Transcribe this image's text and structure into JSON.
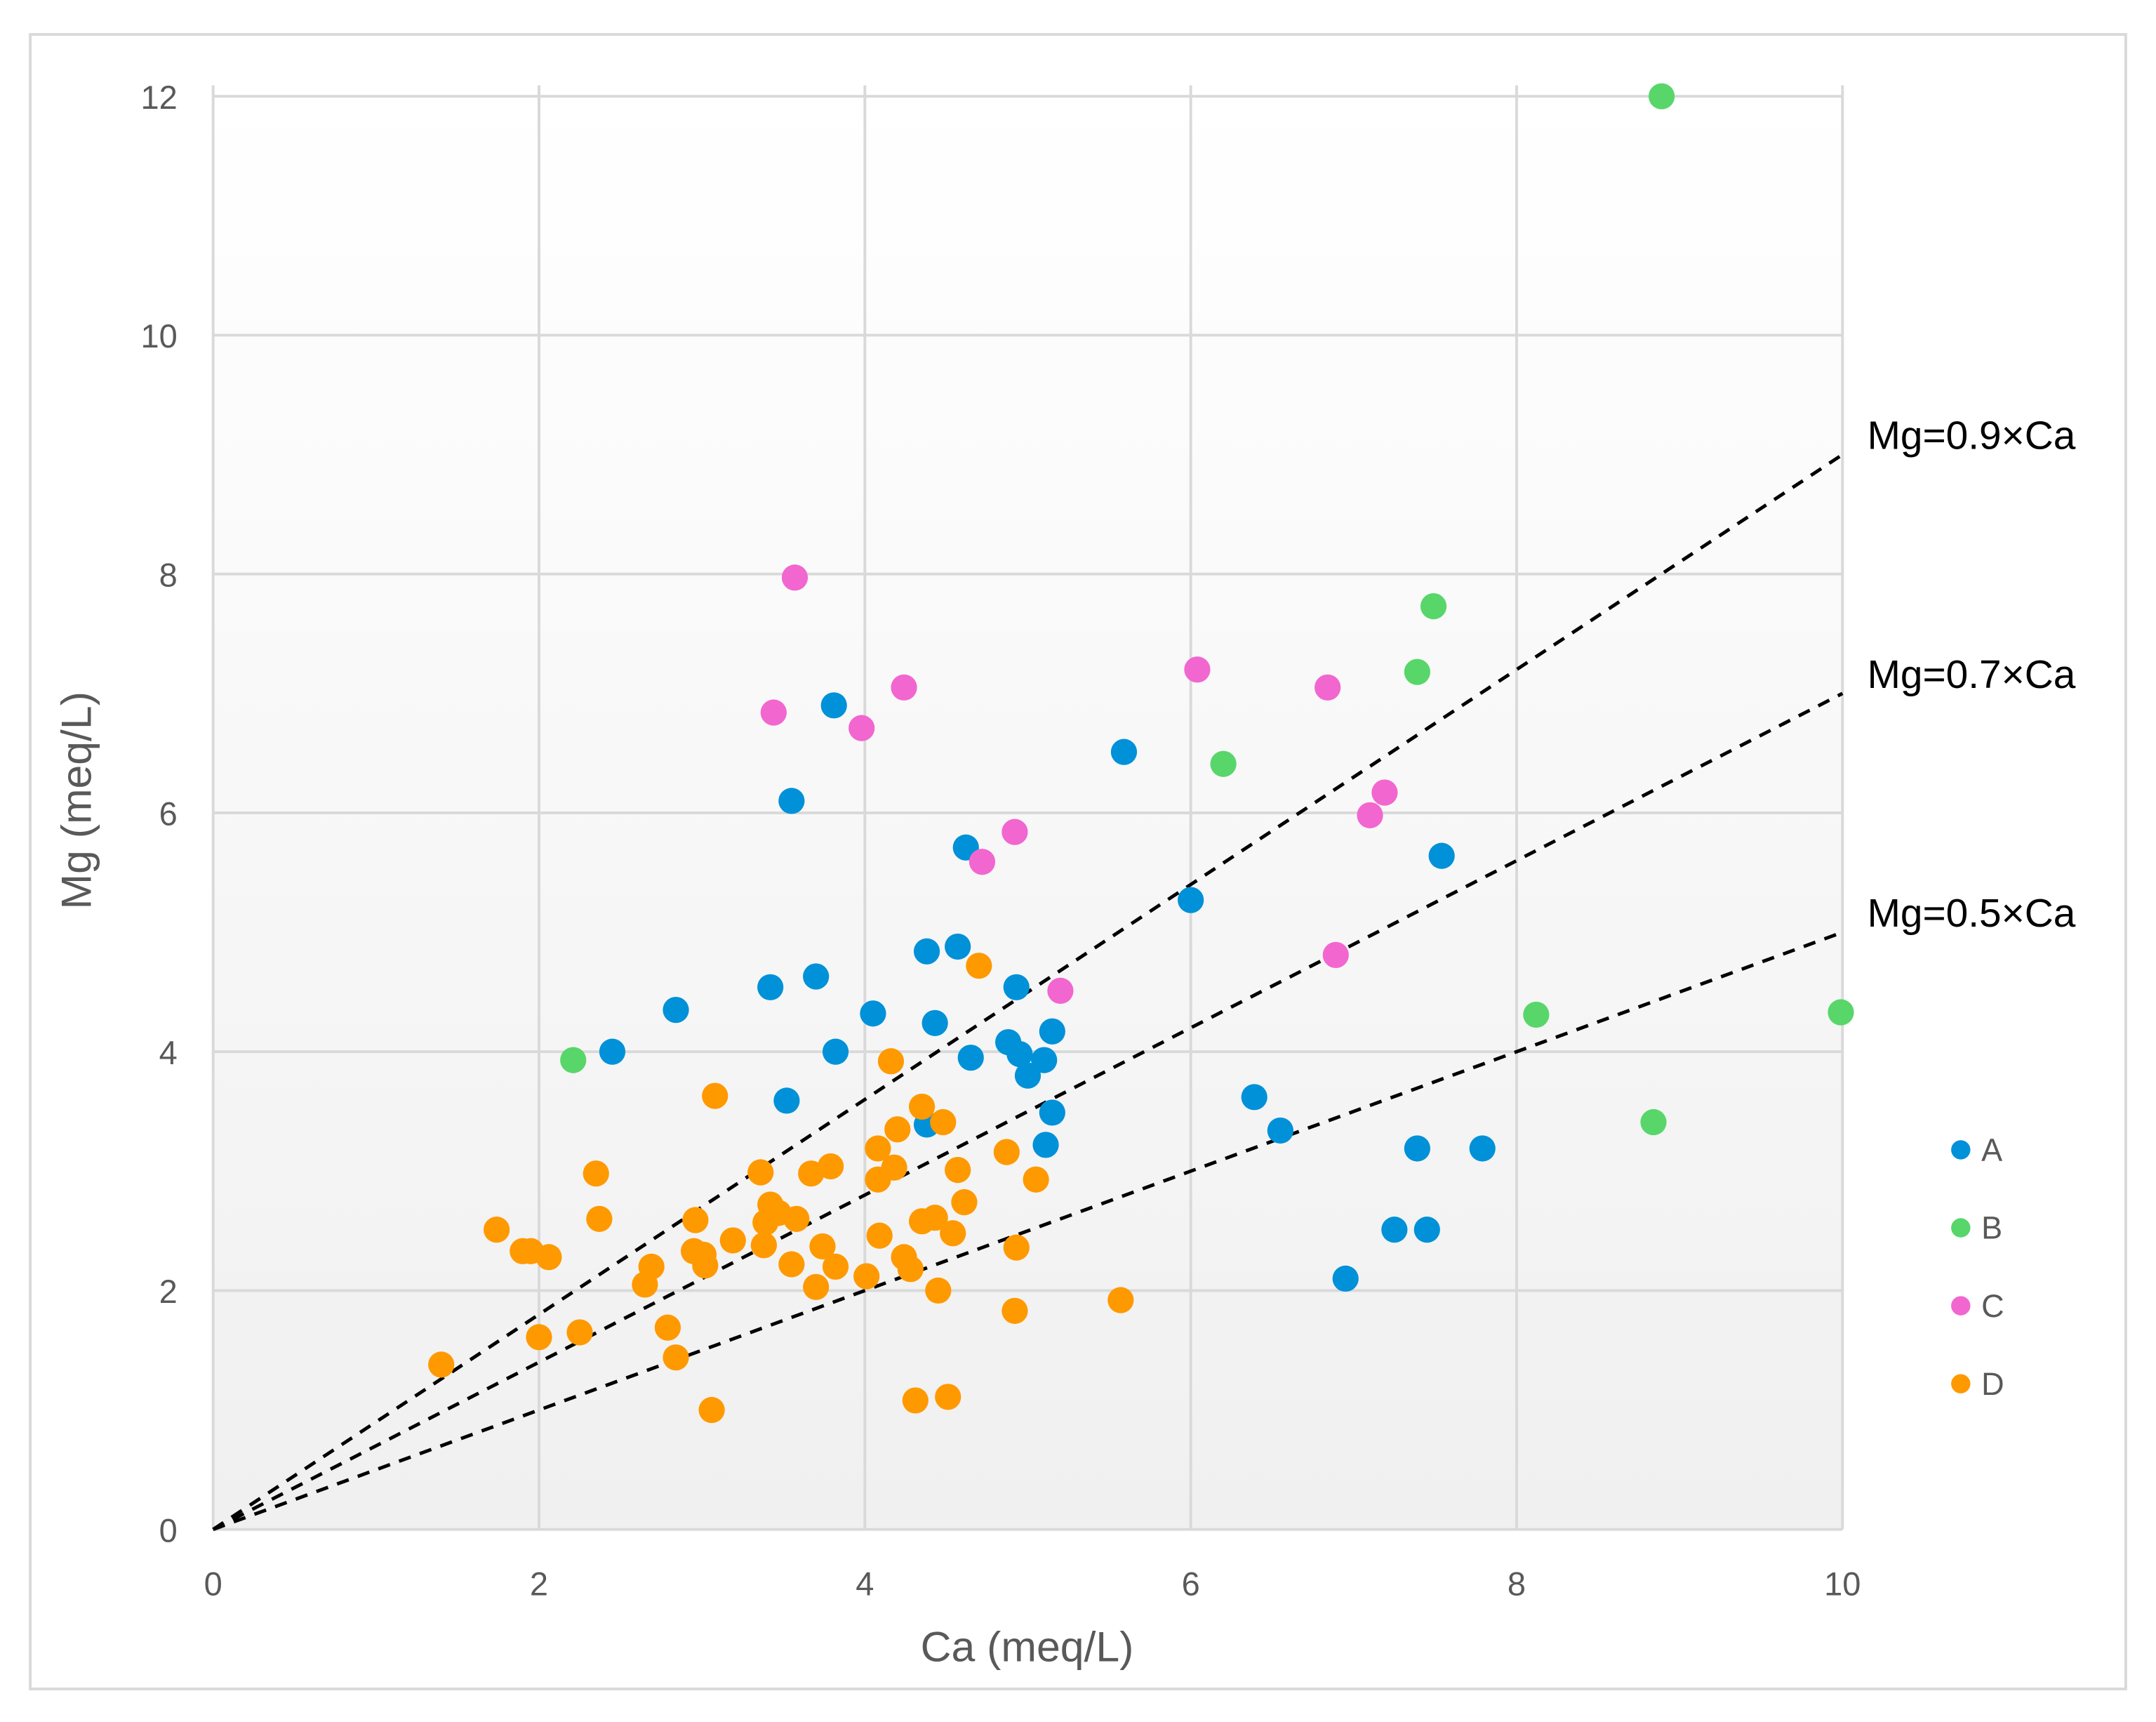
{
  "chart_data": {
    "type": "scatter",
    "title": "",
    "xlabel": "Ca (meq/L)",
    "ylabel": "Mg (meq/L)",
    "xlim": [
      0,
      10
    ],
    "ylim": [
      0,
      12
    ],
    "xticks": [
      "0",
      "2",
      "4",
      "6",
      "8",
      "10"
    ],
    "yticks": [
      "0",
      "2",
      "4",
      "6",
      "8",
      "10",
      "12"
    ],
    "grid": true,
    "legend_position": "right",
    "series": [
      {
        "name": "A",
        "color": "#0091D8",
        "points": [
          [
            2.45,
            4.0
          ],
          [
            2.84,
            4.35
          ],
          [
            3.42,
            4.54
          ],
          [
            3.52,
            3.59
          ],
          [
            3.55,
            6.1
          ],
          [
            3.7,
            4.63
          ],
          [
            3.81,
            6.9
          ],
          [
            3.82,
            4.0
          ],
          [
            4.05,
            4.32
          ],
          [
            4.38,
            4.84
          ],
          [
            4.38,
            3.39
          ],
          [
            4.43,
            4.24
          ],
          [
            4.57,
            4.88
          ],
          [
            4.62,
            5.71
          ],
          [
            4.65,
            3.95
          ],
          [
            4.88,
            4.08
          ],
          [
            4.93,
            4.54
          ],
          [
            4.95,
            3.98
          ],
          [
            5.0,
            3.8
          ],
          [
            5.1,
            3.93
          ],
          [
            5.15,
            4.17
          ],
          [
            5.15,
            3.49
          ],
          [
            5.11,
            3.22
          ],
          [
            5.59,
            6.51
          ],
          [
            6.0,
            5.27
          ],
          [
            6.39,
            3.62
          ],
          [
            6.55,
            3.34
          ],
          [
            6.95,
            2.1
          ],
          [
            7.25,
            2.51
          ],
          [
            7.39,
            3.19
          ],
          [
            7.45,
            2.51
          ],
          [
            7.54,
            5.64
          ],
          [
            7.79,
            3.19
          ]
        ]
      },
      {
        "name": "B",
        "color": "#58D66A",
        "points": [
          [
            2.21,
            3.93
          ],
          [
            6.2,
            6.41
          ],
          [
            7.39,
            7.18
          ],
          [
            7.49,
            7.73
          ],
          [
            8.12,
            4.31
          ],
          [
            8.84,
            3.41
          ],
          [
            8.89,
            12.0
          ],
          [
            9.99,
            4.33
          ]
        ]
      },
      {
        "name": "C",
        "color": "#F266CF",
        "points": [
          [
            3.57,
            7.97
          ],
          [
            3.44,
            6.84
          ],
          [
            3.98,
            6.71
          ],
          [
            4.24,
            7.05
          ],
          [
            4.72,
            5.59
          ],
          [
            4.92,
            5.84
          ],
          [
            5.2,
            4.51
          ],
          [
            6.04,
            7.2
          ],
          [
            6.84,
            7.05
          ],
          [
            6.89,
            4.81
          ],
          [
            7.1,
            5.98
          ],
          [
            7.19,
            6.17
          ]
        ]
      },
      {
        "name": "D",
        "color": "#FF9900",
        "points": [
          [
            1.4,
            1.38
          ],
          [
            1.74,
            2.51
          ],
          [
            1.9,
            2.33
          ],
          [
            1.95,
            2.33
          ],
          [
            2.06,
            2.28
          ],
          [
            2.0,
            1.61
          ],
          [
            2.25,
            1.65
          ],
          [
            2.35,
            2.98
          ],
          [
            2.37,
            2.6
          ],
          [
            2.65,
            2.05
          ],
          [
            2.69,
            2.2
          ],
          [
            2.79,
            1.69
          ],
          [
            2.84,
            1.44
          ],
          [
            2.96,
            2.59
          ],
          [
            2.95,
            2.33
          ],
          [
            3.01,
            2.3
          ],
          [
            3.02,
            2.21
          ],
          [
            3.06,
            1.0
          ],
          [
            3.08,
            3.63
          ],
          [
            3.19,
            2.42
          ],
          [
            3.36,
            2.99
          ],
          [
            3.38,
            2.38
          ],
          [
            3.39,
            2.57
          ],
          [
            3.42,
            2.72
          ],
          [
            3.47,
            2.65
          ],
          [
            3.55,
            2.22
          ],
          [
            3.58,
            2.6
          ],
          [
            3.67,
            2.98
          ],
          [
            3.7,
            2.03
          ],
          [
            3.74,
            2.37
          ],
          [
            3.79,
            3.04
          ],
          [
            3.82,
            2.2
          ],
          [
            4.01,
            2.12
          ],
          [
            4.08,
            2.93
          ],
          [
            4.08,
            3.19
          ],
          [
            4.09,
            2.46
          ],
          [
            4.16,
            3.92
          ],
          [
            4.18,
            3.03
          ],
          [
            4.2,
            3.35
          ],
          [
            4.24,
            2.28
          ],
          [
            4.28,
            2.18
          ],
          [
            4.31,
            1.08
          ],
          [
            4.35,
            2.58
          ],
          [
            4.35,
            3.54
          ],
          [
            4.43,
            2.61
          ],
          [
            4.45,
            2.0
          ],
          [
            4.48,
            3.41
          ],
          [
            4.51,
            1.11
          ],
          [
            4.54,
            2.48
          ],
          [
            4.57,
            3.01
          ],
          [
            4.61,
            2.74
          ],
          [
            4.7,
            4.72
          ],
          [
            4.87,
            3.16
          ],
          [
            4.92,
            1.83
          ],
          [
            4.93,
            2.36
          ],
          [
            5.05,
            2.93
          ],
          [
            5.57,
            1.92
          ]
        ]
      }
    ],
    "reference_lines": [
      {
        "label": "Mg=0.9×Ca",
        "slope": 0.9,
        "style": "dashed"
      },
      {
        "label": "Mg=0.7×Ca",
        "slope": 0.7,
        "style": "dashed"
      },
      {
        "label": "Mg=0.5×Ca",
        "slope": 0.5,
        "style": "dashed"
      }
    ]
  }
}
